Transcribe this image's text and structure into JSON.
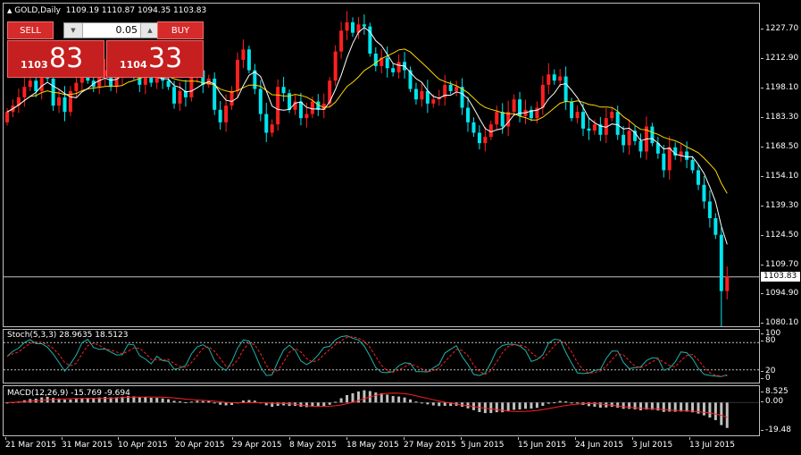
{
  "header": {
    "symbol": "GOLD,Daily",
    "ohlc": "1109.19 1110.87 1094.35 1103.83"
  },
  "trade_panel": {
    "sell_label": "SELL",
    "buy_label": "BUY",
    "lot_value": "0.05",
    "bid_small": "1103",
    "bid_big": "83",
    "ask_small": "1104",
    "ask_big": "33"
  },
  "price_axis": {
    "ticks": [
      "1227.70",
      "1212.90",
      "1198.10",
      "1183.30",
      "1168.50",
      "1154.10",
      "1139.30",
      "1124.50",
      "1109.70",
      "1094.90",
      "1080.10"
    ],
    "current": "1103.83"
  },
  "stoch": {
    "label": "Stoch(5,3,3) 28.9635 18.5123",
    "ticks": [
      "100",
      "80",
      "20",
      "0"
    ]
  },
  "macd": {
    "label": "MACD(12,26,9) -15.769 -9.694",
    "ticks": [
      "8.525",
      "0.00",
      "-19.48"
    ]
  },
  "time_axis": {
    "labels": [
      "21 Mar 2015",
      "31 Mar 2015",
      "10 Apr 2015",
      "20 Apr 2015",
      "29 Apr 2015",
      "8 May 2015",
      "18 May 2015",
      "27 May 2015",
      "5 Jun 2015",
      "15 Jun 2015",
      "24 Jun 2015",
      "3 Jul 2015",
      "13 Jul 2015"
    ]
  },
  "colors": {
    "bull": "#ff2020",
    "bear": "#00e5ee",
    "ma_fast": "#ffffff",
    "ma_slow": "#ffd700",
    "stoch_main": "#20b2aa",
    "stoch_signal": "#ff2020",
    "macd_hist": "#c0c0c0",
    "macd_signal": "#ff2020"
  },
  "chart_data": {
    "type": "candlestick",
    "symbol": "GOLD",
    "timeframe": "Daily",
    "ylim": [
      1080.1,
      1235
    ],
    "close": [
      1183,
      1186,
      1190,
      1195,
      1198,
      1193,
      1201,
      1199,
      1186,
      1190,
      1183,
      1193,
      1197,
      1200,
      1198,
      1195,
      1200,
      1203,
      1195,
      1200,
      1204,
      1206,
      1201,
      1196,
      1203,
      1197,
      1201,
      1198,
      1195,
      1187,
      1193,
      1190,
      1200,
      1203,
      1196,
      1199,
      1184,
      1178,
      1186,
      1193,
      1208,
      1213,
      1203,
      1194,
      1182,
      1173,
      1177,
      1195,
      1192,
      1184,
      1188,
      1180,
      1182,
      1188,
      1184,
      1187,
      1198,
      1212,
      1222,
      1226,
      1221,
      1225,
      1224,
      1211,
      1205,
      1209,
      1204,
      1202,
      1207,
      1203,
      1194,
      1189,
      1193,
      1187,
      1189,
      1190,
      1196,
      1193,
      1195,
      1185,
      1178,
      1173,
      1168,
      1171,
      1177,
      1183,
      1176,
      1183,
      1189,
      1181,
      1184,
      1180,
      1185,
      1196,
      1201,
      1198,
      1200,
      1188,
      1180,
      1183,
      1175,
      1174,
      1177,
      1172,
      1180,
      1183,
      1172,
      1167,
      1174,
      1169,
      1164,
      1176,
      1168,
      1163,
      1155,
      1166,
      1162,
      1164,
      1160,
      1155,
      1148,
      1140,
      1132,
      1124,
      1097,
      1104
    ],
    "series": [
      {
        "name": "Stoch(5,3,3)",
        "last_values": [
          28.9635,
          18.5123
        ]
      },
      {
        "name": "MACD(12,26,9)",
        "last_values": [
          -15.769,
          -9.694
        ]
      }
    ]
  }
}
